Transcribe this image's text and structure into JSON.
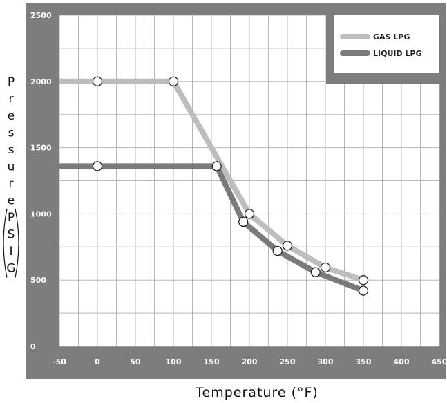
{
  "chart_data": {
    "type": "line",
    "xlabel": "Temperature (°F)",
    "ylabel": "Pressure (PSIG)",
    "xlim": [
      -50,
      450
    ],
    "ylim": [
      0,
      2500
    ],
    "xticks": [
      -50,
      0,
      50,
      100,
      150,
      200,
      250,
      300,
      350,
      400,
      450
    ],
    "yticks": [
      0,
      500,
      1000,
      1500,
      2000,
      2500
    ],
    "grid": true,
    "legend_position": "top-right",
    "series": [
      {
        "name": "GAS LPG",
        "color": "#bdbdbd",
        "x": [
          -50,
          0,
          100,
          200,
          250,
          300,
          350
        ],
        "y": [
          2000,
          2000,
          2000,
          1000,
          760,
          595,
          500
        ],
        "markers": [
          [
            0,
            2000
          ],
          [
            100,
            2000
          ],
          [
            200,
            1000
          ],
          [
            250,
            760
          ],
          [
            300,
            595
          ],
          [
            350,
            500
          ]
        ]
      },
      {
        "name": "LIQUID LPG",
        "color": "#7a7a7a",
        "x": [
          -50,
          0,
          157,
          192,
          237,
          287,
          350
        ],
        "y": [
          1360,
          1360,
          1360,
          940,
          720,
          560,
          420
        ],
        "markers": [
          [
            0,
            1360
          ],
          [
            157,
            1360
          ],
          [
            192,
            940
          ],
          [
            237,
            720
          ],
          [
            287,
            560
          ],
          [
            350,
            420
          ]
        ]
      }
    ]
  }
}
